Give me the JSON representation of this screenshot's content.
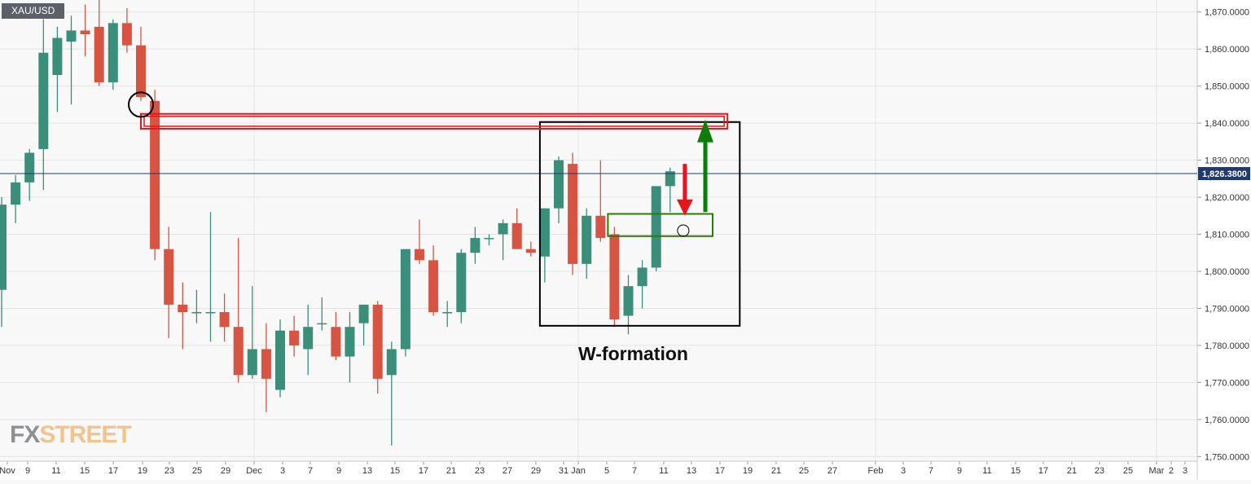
{
  "ticker": "XAU/USD",
  "logo": {
    "fx": "FX",
    "street": "STREET"
  },
  "annotation_text": "W-formation",
  "current_price_label": "1,826.3800",
  "colors": {
    "up": "#3a8e7a",
    "down": "#d75442",
    "price_line": "#1f3a6e",
    "grid": "#e3e3e3",
    "pattern_box": "#000000",
    "resistance_box": "#e8141b",
    "support_box": "#2b7a0b",
    "arrow_up": "#0a7d0a",
    "arrow_down": "#e8141b"
  },
  "chart_data": {
    "type": "candlestick",
    "title": "",
    "xlabel": "",
    "ylabel": "",
    "ylim": [
      1748,
      1874
    ],
    "grid": true,
    "y_ticks": [
      "1,870.0000",
      "1,860.0000",
      "1,850.0000",
      "1,840.0000",
      "1,830.0000",
      "1,820.0000",
      "1,810.0000",
      "1,800.0000",
      "1,790.0000",
      "1,780.0000",
      "1,770.0000",
      "1,760.0000",
      "1,750.0000"
    ],
    "x_ticks": [
      "Nov",
      "9",
      "11",
      "15",
      "17",
      "19",
      "23",
      "25",
      "29",
      "Dec",
      "3",
      "7",
      "9",
      "13",
      "15",
      "17",
      "21",
      "23",
      "27",
      "29",
      "31",
      "Jan",
      "5",
      "7",
      "11",
      "13",
      "17",
      "19",
      "21",
      "25",
      "27",
      "Feb",
      "3",
      "7",
      "9",
      "11",
      "15",
      "17",
      "21",
      "23",
      "25",
      "Mar",
      "2",
      "3"
    ],
    "current_price": 1826.38,
    "candles": [
      {
        "o": 1795,
        "h": 1820,
        "l": 1785,
        "c": 1818
      },
      {
        "o": 1818,
        "h": 1826,
        "l": 1813,
        "c": 1824
      },
      {
        "o": 1824,
        "h": 1833,
        "l": 1819,
        "c": 1832
      },
      {
        "o": 1833,
        "h": 1868,
        "l": 1822,
        "c": 1859
      },
      {
        "o": 1853,
        "h": 1866,
        "l": 1843,
        "c": 1863
      },
      {
        "o": 1862,
        "h": 1869,
        "l": 1845,
        "c": 1865
      },
      {
        "o": 1865,
        "h": 1872,
        "l": 1858,
        "c": 1864
      },
      {
        "o": 1866,
        "h": 1876,
        "l": 1850,
        "c": 1851
      },
      {
        "o": 1851,
        "h": 1868,
        "l": 1849,
        "c": 1867
      },
      {
        "o": 1867,
        "h": 1871,
        "l": 1859,
        "c": 1861
      },
      {
        "o": 1861,
        "h": 1866,
        "l": 1846,
        "c": 1847
      },
      {
        "o": 1846,
        "h": 1849,
        "l": 1803,
        "c": 1806
      },
      {
        "o": 1806,
        "h": 1812,
        "l": 1782,
        "c": 1791
      },
      {
        "o": 1791,
        "h": 1797,
        "l": 1779,
        "c": 1789
      },
      {
        "o": 1789,
        "h": 1795,
        "l": 1786,
        "c": 1789
      },
      {
        "o": 1789,
        "h": 1816,
        "l": 1781,
        "c": 1789
      },
      {
        "o": 1789,
        "h": 1794,
        "l": 1781,
        "c": 1785
      },
      {
        "o": 1785,
        "h": 1809,
        "l": 1770,
        "c": 1772
      },
      {
        "o": 1772,
        "h": 1796,
        "l": 1771,
        "c": 1779
      },
      {
        "o": 1779,
        "h": 1786,
        "l": 1762,
        "c": 1771
      },
      {
        "o": 1768,
        "h": 1787,
        "l": 1766,
        "c": 1784
      },
      {
        "o": 1784,
        "h": 1788,
        "l": 1777,
        "c": 1780
      },
      {
        "o": 1779,
        "h": 1791,
        "l": 1772,
        "c": 1785
      },
      {
        "o": 1786,
        "h": 1793,
        "l": 1784,
        "c": 1786
      },
      {
        "o": 1785,
        "h": 1789,
        "l": 1776,
        "c": 1777
      },
      {
        "o": 1777,
        "h": 1789,
        "l": 1770,
        "c": 1785
      },
      {
        "o": 1786,
        "h": 1791,
        "l": 1780,
        "c": 1791
      },
      {
        "o": 1791,
        "h": 1792,
        "l": 1767,
        "c": 1771
      },
      {
        "o": 1772,
        "h": 1781,
        "l": 1753,
        "c": 1779
      },
      {
        "o": 1779,
        "h": 1806,
        "l": 1777,
        "c": 1806
      },
      {
        "o": 1806,
        "h": 1814,
        "l": 1802,
        "c": 1803
      },
      {
        "o": 1803,
        "h": 1807,
        "l": 1788,
        "c": 1789
      },
      {
        "o": 1789,
        "h": 1792,
        "l": 1785,
        "c": 1789
      },
      {
        "o": 1789,
        "h": 1806,
        "l": 1786,
        "c": 1805
      },
      {
        "o": 1805,
        "h": 1812,
        "l": 1802,
        "c": 1809
      },
      {
        "o": 1809,
        "h": 1810,
        "l": 1807,
        "c": 1809
      },
      {
        "o": 1810,
        "h": 1814,
        "l": 1803,
        "c": 1813
      },
      {
        "o": 1813,
        "h": 1817,
        "l": 1806,
        "c": 1806
      },
      {
        "o": 1806,
        "h": 1808,
        "l": 1804,
        "c": 1805
      },
      {
        "o": 1804,
        "h": 1817,
        "l": 1797,
        "c": 1817
      },
      {
        "o": 1817,
        "h": 1831,
        "l": 1813,
        "c": 1830
      },
      {
        "o": 1829,
        "h": 1832,
        "l": 1799,
        "c": 1802
      },
      {
        "o": 1802,
        "h": 1817,
        "l": 1798,
        "c": 1815
      },
      {
        "o": 1815,
        "h": 1830,
        "l": 1808,
        "c": 1809
      },
      {
        "o": 1810,
        "h": 1812,
        "l": 1785,
        "c": 1787
      },
      {
        "o": 1788,
        "h": 1799,
        "l": 1783,
        "c": 1796
      },
      {
        "o": 1796,
        "h": 1803,
        "l": 1790,
        "c": 1801
      },
      {
        "o": 1801,
        "h": 1823,
        "l": 1800,
        "c": 1823
      },
      {
        "o": 1823,
        "h": 1828,
        "l": 1816,
        "c": 1827
      }
    ],
    "shapes": {
      "pattern_box": {
        "y_top": 1840.3,
        "y_bottom": 1785.3,
        "from_candle": 39,
        "to_candle": 53
      },
      "resistance_box": {
        "y_top": 1842.5,
        "y_bottom": 1838.5,
        "from_candle": 10,
        "to_candle": 52
      },
      "support_box": {
        "y_top": 1815.5,
        "y_bottom": 1809.5,
        "from_candle": 44,
        "to_candle": 50
      },
      "arrow_down": {
        "candle": 49,
        "from": 1829,
        "to": 1815
      },
      "arrow_up": {
        "candle": 50,
        "from": 1816,
        "to": 1841
      },
      "marker_big": {
        "candle": 10,
        "price": 1845
      },
      "marker_small": {
        "candle": 49,
        "price": 1811
      }
    }
  }
}
